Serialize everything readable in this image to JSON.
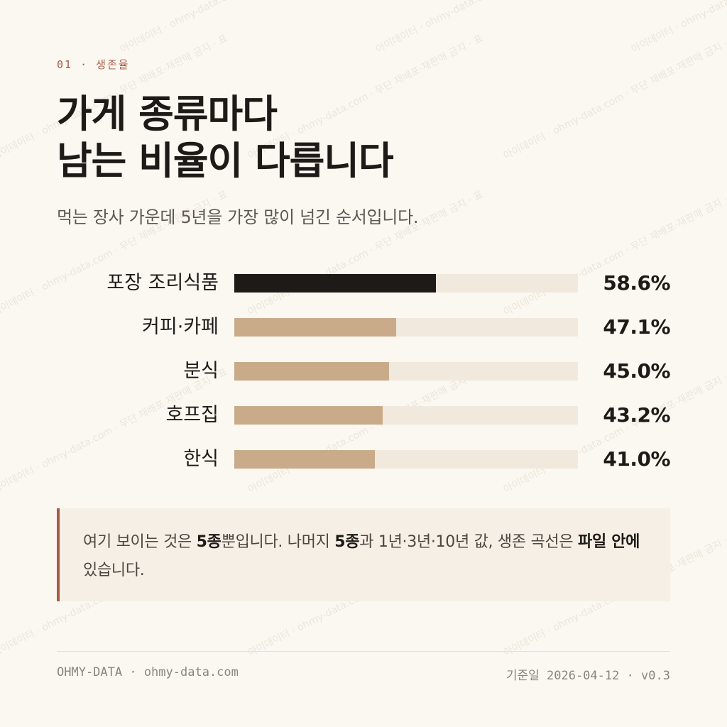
{
  "eyebrow": "01 · 생존율",
  "title_line1": "가게 종류마다",
  "title_line2": "남는 비율이 다릅니다",
  "subtitle": "먹는 장사 가운데 5년을 가장 많이 넘긴 순서입니다.",
  "chart_data": {
    "type": "bar",
    "orientation": "horizontal",
    "categories": [
      "포장 조리식품",
      "커피·카페",
      "분식",
      "호프집",
      "한식"
    ],
    "values": [
      58.6,
      47.1,
      45.0,
      43.2,
      41.0
    ],
    "value_labels": [
      "58.6%",
      "47.1%",
      "45.0%",
      "43.2%",
      "41.0%"
    ],
    "xlim": [
      0,
      100
    ],
    "grid": false,
    "highlight_index": 0,
    "colors": {
      "highlight": "#1d1a17",
      "bar": "#c9ab8a",
      "track": "#f1e9de"
    }
  },
  "note": {
    "t1": "여기 보이는 것은 ",
    "b1": "5종",
    "t2": "뿐입니다. 나머지 ",
    "b2": "5종",
    "t3": "과 1년·3년·10년 값, 생존 곡선은 ",
    "b3": "파일 안에",
    "t4": " 있습니다."
  },
  "footer": {
    "left": "OHMY-DATA · ohmy-data.com",
    "right": "기준일 2026-04-12 · v0.3"
  },
  "watermark": "아이데이터 · ohmy-data.com · 무단 재배포·재판매 금지 · 표",
  "colors": {
    "accent": "#a85a43",
    "background": "#fbf8f2",
    "note_bg": "#f6efe6"
  }
}
